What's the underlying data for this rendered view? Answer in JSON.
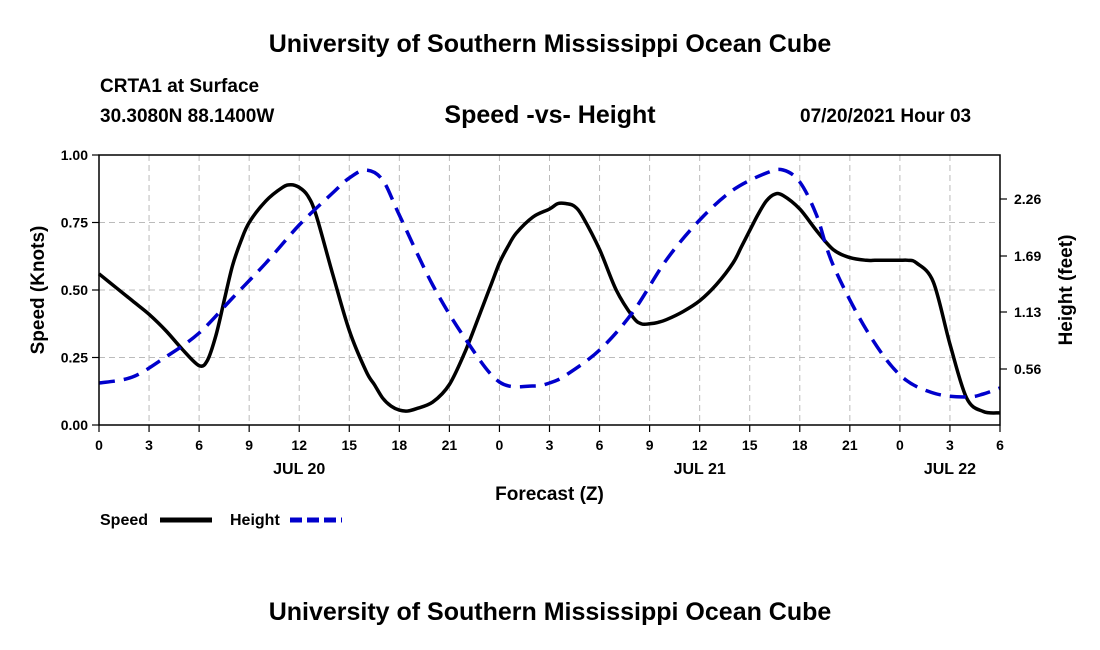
{
  "header": {
    "title": "University of Southern Mississippi Ocean Cube",
    "station": "CRTA1 at Surface",
    "coords": "30.3080N  88.1400W",
    "chart_title": "Speed -vs- Height",
    "datetime": "07/20/2021 Hour 03"
  },
  "footer": {
    "title": "University of Southern Mississippi Ocean Cube"
  },
  "colors": {
    "speed": "#000000",
    "height": "#0000cc",
    "grid": "#bbbbbb"
  },
  "chart_data": {
    "type": "line",
    "title": "Speed -vs- Height",
    "xlabel": "Forecast (Z)",
    "ylabel": "Speed (Knots)",
    "y2label": "Height (feet)",
    "xlim": [
      0,
      54
    ],
    "ylim": [
      0,
      1
    ],
    "y2lim": [
      0,
      2.7
    ],
    "x_ticks": [
      0,
      3,
      6,
      9,
      12,
      15,
      18,
      21,
      24,
      27,
      30,
      33,
      36,
      39,
      42,
      45,
      48,
      51,
      54
    ],
    "x_tick_labels": [
      "0",
      "3",
      "6",
      "9",
      "12",
      "15",
      "18",
      "21",
      "0",
      "3",
      "6",
      "9",
      "12",
      "15",
      "18",
      "21",
      "0",
      "3",
      "6"
    ],
    "date_labels": [
      {
        "x": 12,
        "label": "JUL 20"
      },
      {
        "x": 36,
        "label": "JUL 21"
      },
      {
        "x": 51,
        "label": "JUL 22"
      }
    ],
    "y_ticks": [
      0,
      0.25,
      0.5,
      0.75,
      1.0
    ],
    "y_tick_labels": [
      "0.00",
      "0.25",
      "0.50",
      "0.75",
      "1.00"
    ],
    "y2_ticks": [
      0.56,
      1.13,
      1.69,
      2.26
    ],
    "y2_tick_labels": [
      "0.56",
      "1.13",
      "1.69",
      "2.26"
    ],
    "grid": true,
    "series": [
      {
        "name": "Speed",
        "axis": "left",
        "style": "solid",
        "x": [
          0,
          1,
          2,
          3,
          4,
          5,
          6,
          6.5,
          7,
          7.5,
          8,
          8.5,
          9,
          10,
          11,
          11.5,
          12,
          12.5,
          13,
          14,
          15,
          16,
          16.5,
          17,
          17.5,
          18,
          18.5,
          19,
          20,
          21,
          22,
          23,
          23.5,
          24,
          24.5,
          25,
          26,
          27,
          27.5,
          28,
          28.5,
          29,
          30,
          31,
          32,
          32.5,
          33,
          33.5,
          34,
          35,
          36,
          37,
          38,
          38.5,
          39,
          39.5,
          40,
          40.5,
          41,
          42,
          43,
          44,
          45,
          46,
          46.5,
          47,
          47.5,
          48,
          48.5,
          49,
          50,
          51,
          52,
          53,
          54
        ],
        "y": [
          0.56,
          0.51,
          0.46,
          0.41,
          0.35,
          0.28,
          0.22,
          0.24,
          0.33,
          0.46,
          0.59,
          0.68,
          0.75,
          0.83,
          0.88,
          0.89,
          0.88,
          0.85,
          0.78,
          0.56,
          0.35,
          0.2,
          0.15,
          0.1,
          0.07,
          0.055,
          0.052,
          0.06,
          0.085,
          0.15,
          0.28,
          0.44,
          0.52,
          0.6,
          0.66,
          0.71,
          0.77,
          0.8,
          0.82,
          0.82,
          0.81,
          0.77,
          0.65,
          0.5,
          0.4,
          0.375,
          0.375,
          0.38,
          0.39,
          0.42,
          0.46,
          0.52,
          0.6,
          0.66,
          0.72,
          0.78,
          0.83,
          0.855,
          0.85,
          0.8,
          0.72,
          0.65,
          0.62,
          0.61,
          0.61,
          0.61,
          0.61,
          0.61,
          0.61,
          0.6,
          0.53,
          0.3,
          0.1,
          0.05,
          0.045
        ]
      },
      {
        "name": "Height",
        "axis": "right",
        "style": "dashed",
        "x": [
          0,
          2,
          4,
          6,
          8,
          10,
          12,
          14,
          15,
          16,
          17,
          18,
          20,
          22,
          24,
          26,
          27,
          28,
          30,
          32,
          34,
          36,
          38,
          40,
          41,
          42,
          43,
          44,
          46,
          48,
          50,
          52,
          53,
          54
        ],
        "y": [
          0.42,
          0.48,
          0.68,
          0.92,
          1.27,
          1.62,
          2.0,
          2.32,
          2.47,
          2.55,
          2.45,
          2.1,
          1.4,
          0.85,
          0.43,
          0.39,
          0.42,
          0.5,
          0.75,
          1.13,
          1.65,
          2.05,
          2.35,
          2.52,
          2.55,
          2.43,
          2.1,
          1.6,
          0.95,
          0.5,
          0.32,
          0.28,
          0.31,
          0.37
        ]
      }
    ],
    "legend": [
      {
        "name": "Speed",
        "style": "solid"
      },
      {
        "name": "Height",
        "style": "dashed"
      }
    ],
    "legend_position": "bottom-left"
  }
}
